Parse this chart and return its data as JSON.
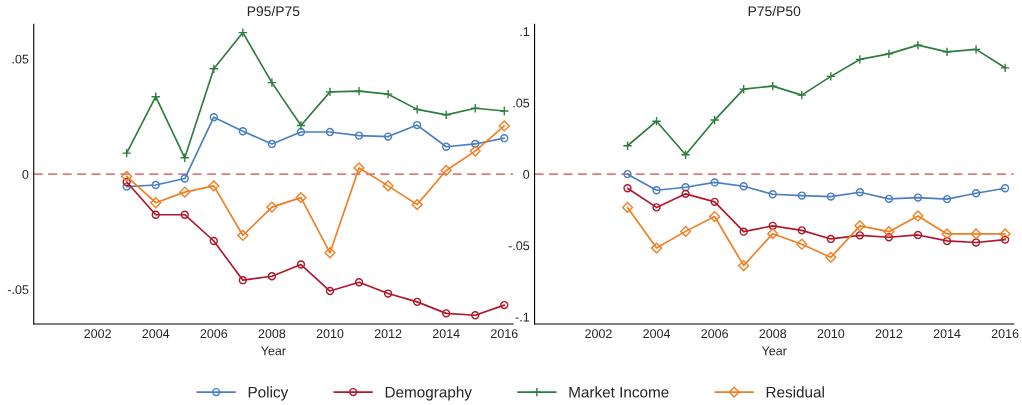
{
  "chart_data": [
    {
      "type": "line",
      "title": "P95/P75",
      "xlabel": "Year",
      "x": [
        2003,
        2004,
        2005,
        2006,
        2007,
        2008,
        2009,
        2010,
        2011,
        2012,
        2013,
        2014,
        2015,
        2016
      ],
      "xlim": [
        1999.8,
        2016.3
      ],
      "xticks": [
        2002,
        2004,
        2006,
        2008,
        2010,
        2012,
        2014,
        2016
      ],
      "ylim": [
        -0.065,
        0.065
      ],
      "yticks": [
        {
          "value": -0.05,
          "label": "-.05"
        },
        0,
        {
          "value": 0.05,
          "label": ".05"
        }
      ],
      "grid": false,
      "legend": "bottom",
      "ref_lines": [
        {
          "axis": "y",
          "value": 0,
          "color": "#e07b86",
          "line_style": "dashed"
        }
      ],
      "series": [
        {
          "name": "Policy",
          "color": "#4a7fc1",
          "marker": "circle",
          "values": [
            -0.0054,
            -0.0047,
            -0.0019,
            0.0247,
            0.0186,
            0.0131,
            0.0183,
            0.0183,
            0.0167,
            0.0163,
            0.0213,
            0.0119,
            0.0131,
            0.0156
          ]
        },
        {
          "name": "Demography",
          "color": "#b2182b",
          "marker": "circle",
          "values": [
            -0.0034,
            -0.0176,
            -0.0176,
            -0.029,
            -0.046,
            -0.0443,
            -0.0392,
            -0.0507,
            -0.0469,
            -0.0518,
            -0.0554,
            -0.0604,
            -0.0612,
            -0.0568
          ]
        },
        {
          "name": "Market Income",
          "color": "#2e7d3e",
          "marker": "cross",
          "values": [
            0.0091,
            0.0336,
            0.0071,
            0.0457,
            0.0614,
            0.0397,
            0.0211,
            0.0357,
            0.036,
            0.0347,
            0.0281,
            0.0257,
            0.0286,
            0.0274
          ]
        },
        {
          "name": "Residual",
          "color": "#f07f22",
          "marker": "diamond",
          "values": [
            -0.001,
            -0.0124,
            -0.0078,
            -0.0051,
            -0.0266,
            -0.0143,
            -0.0102,
            -0.0341,
            0.0027,
            -0.0051,
            -0.0132,
            0.0016,
            0.01,
            0.0209
          ]
        }
      ]
    },
    {
      "type": "line",
      "title": "P75/P50",
      "xlabel": "Year",
      "x": [
        2003,
        2004,
        2005,
        2006,
        2007,
        2008,
        2009,
        2010,
        2011,
        2012,
        2013,
        2014,
        2015,
        2016
      ],
      "xlim": [
        1999.8,
        2016.3
      ],
      "xticks": [
        2002,
        2004,
        2006,
        2008,
        2010,
        2012,
        2014,
        2016
      ],
      "ylim": [
        -0.105,
        0.105
      ],
      "yticks": [
        {
          "value": -0.1,
          "label": "-.1"
        },
        {
          "value": -0.05,
          "label": "-.05"
        },
        0,
        {
          "value": 0.05,
          "label": ".05"
        },
        {
          "value": 0.1,
          "label": ".1"
        }
      ],
      "grid": false,
      "ref_lines": [
        {
          "axis": "y",
          "value": 0,
          "color": "#e07b86",
          "line_style": "dashed"
        }
      ],
      "series": [
        {
          "color": "#4a7fc1",
          "marker": "circle",
          "values": [
            0,
            -0.0113,
            -0.0092,
            -0.0058,
            -0.0085,
            -0.0141,
            -0.015,
            -0.0157,
            -0.0127,
            -0.0173,
            -0.0164,
            -0.0175,
            -0.0134,
            -0.0099
          ]
        },
        {
          "color": "#b2182b",
          "marker": "circle",
          "values": [
            -0.0099,
            -0.0233,
            -0.0138,
            -0.0194,
            -0.0403,
            -0.0362,
            -0.0394,
            -0.0454,
            -0.0429,
            -0.0442,
            -0.0426,
            -0.0468,
            -0.0479,
            -0.0459
          ]
        },
        {
          "color": "#2e7d3e",
          "marker": "cross",
          "values": [
            0.0199,
            0.0371,
            0.0136,
            0.0379,
            0.0596,
            0.0617,
            0.0554,
            0.0685,
            0.0804,
            0.0843,
            0.0904,
            0.0857,
            0.0874,
            0.0745
          ]
        },
        {
          "color": "#f07f22",
          "marker": "diamond",
          "values": [
            -0.0233,
            -0.0518,
            -0.0401,
            -0.0297,
            -0.0641,
            -0.0417,
            -0.0491,
            -0.0583,
            -0.0362,
            -0.0403,
            -0.0293,
            -0.0419,
            -0.0419,
            -0.0419
          ]
        }
      ]
    }
  ]
}
